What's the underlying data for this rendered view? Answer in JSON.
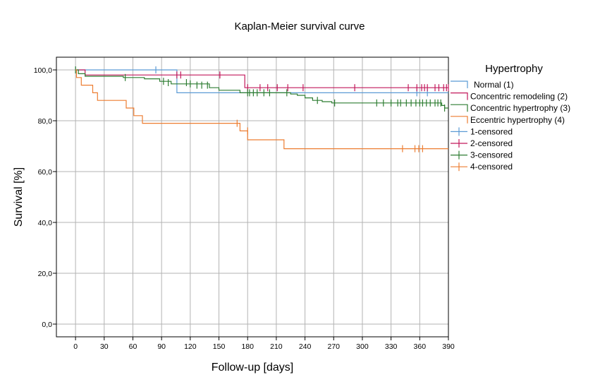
{
  "chart_data": {
    "type": "line",
    "title": "Kaplan-Meier survival curve",
    "xlabel": "Follow-up [days]",
    "ylabel": "Survival [%]",
    "xlim": [
      -20,
      390
    ],
    "ylim": [
      -5,
      105
    ],
    "x_ticks": [
      "0",
      "30",
      "60",
      "90",
      "120",
      "150",
      "180",
      "210",
      "240",
      "270",
      "300",
      "330",
      "360",
      "390"
    ],
    "y_ticks": [
      "0,0",
      "20,0",
      "40,0",
      "60,0",
      "80,0",
      "100,0"
    ],
    "grid": true,
    "legend_placement": "right",
    "legend_title": "Hypertrophy",
    "legend_entries": [
      {
        "label": "Normal (1)",
        "kind": "line",
        "color": "#5b9bd5"
      },
      {
        "label": "Concentric remodeling (2)",
        "kind": "line",
        "color": "#c2185b"
      },
      {
        "label": "Concentric hypertrophy (3)",
        "kind": "line",
        "color": "#2e7d32"
      },
      {
        "label": "Eccentric hypertrophy (4)",
        "kind": "line",
        "color": "#ed7d31"
      },
      {
        "label": "1-censored",
        "kind": "censor",
        "color": "#5b9bd5"
      },
      {
        "label": "2-censored",
        "kind": "censor",
        "color": "#c2185b"
      },
      {
        "label": "3-censored",
        "kind": "censor",
        "color": "#2e7d32"
      },
      {
        "label": "4-censored",
        "kind": "censor",
        "color": "#ed7d31"
      }
    ],
    "series": [
      {
        "name": "Normal (1)",
        "color": "#5b9bd5",
        "steps": [
          [
            0,
            100
          ],
          [
            106,
            91
          ],
          [
            390,
            91
          ]
        ],
        "censored": [
          [
            0,
            100
          ],
          [
            84,
            100
          ],
          [
            357,
            91
          ],
          [
            368,
            91
          ]
        ]
      },
      {
        "name": "Concentric remodeling (2)",
        "color": "#c2185b",
        "steps": [
          [
            0,
            100
          ],
          [
            10,
            98
          ],
          [
            175,
            98
          ],
          [
            177,
            93
          ],
          [
            390,
            93
          ]
        ],
        "censored": [
          [
            106,
            98
          ],
          [
            110,
            98
          ],
          [
            151,
            98
          ],
          [
            180,
            93
          ],
          [
            193,
            93
          ],
          [
            201,
            93
          ],
          [
            211,
            93
          ],
          [
            222,
            93
          ],
          [
            238,
            93
          ],
          [
            292,
            93
          ],
          [
            348,
            93
          ],
          [
            357,
            93
          ],
          [
            362,
            93
          ],
          [
            365,
            93
          ],
          [
            368,
            93
          ],
          [
            376,
            93
          ],
          [
            380,
            93
          ],
          [
            385,
            93
          ],
          [
            388,
            93
          ],
          [
            390,
            93
          ]
        ]
      },
      {
        "name": "Concentric hypertrophy (3)",
        "color": "#2e7d32",
        "steps": [
          [
            0,
            100
          ],
          [
            3,
            98.5
          ],
          [
            10,
            97.5
          ],
          [
            50,
            97
          ],
          [
            72,
            96.5
          ],
          [
            88,
            95.5
          ],
          [
            100,
            94.5
          ],
          [
            140,
            93
          ],
          [
            150,
            92
          ],
          [
            172,
            91
          ],
          [
            225,
            90.5
          ],
          [
            232,
            90
          ],
          [
            240,
            89
          ],
          [
            248,
            88
          ],
          [
            258,
            87.5
          ],
          [
            268,
            87
          ],
          [
            383,
            86
          ],
          [
            386,
            85
          ],
          [
            390,
            85
          ]
        ],
        "censored": [
          [
            0,
            100
          ],
          [
            52,
            97
          ],
          [
            92,
            95.5
          ],
          [
            97,
            95
          ],
          [
            116,
            95
          ],
          [
            120,
            94.5
          ],
          [
            127,
            94
          ],
          [
            132,
            94
          ],
          [
            138,
            94
          ],
          [
            180,
            91
          ],
          [
            182,
            91
          ],
          [
            186,
            91
          ],
          [
            190,
            91
          ],
          [
            197,
            91
          ],
          [
            203,
            91
          ],
          [
            221,
            91
          ],
          [
            253,
            88
          ],
          [
            271,
            87
          ],
          [
            315,
            87
          ],
          [
            322,
            87
          ],
          [
            330,
            87
          ],
          [
            337,
            87
          ],
          [
            340,
            87
          ],
          [
            346,
            87
          ],
          [
            351,
            87
          ],
          [
            356,
            87
          ],
          [
            360,
            87
          ],
          [
            363,
            87
          ],
          [
            367,
            87
          ],
          [
            371,
            87
          ],
          [
            376,
            87
          ],
          [
            379,
            87
          ],
          [
            382,
            87
          ],
          [
            386,
            85
          ]
        ]
      },
      {
        "name": "Eccentric hypertrophy (4)",
        "color": "#ed7d31",
        "steps": [
          [
            0,
            100
          ],
          [
            1,
            97
          ],
          [
            6,
            94
          ],
          [
            18,
            91
          ],
          [
            23,
            88
          ],
          [
            53,
            85
          ],
          [
            61,
            82
          ],
          [
            70,
            79
          ],
          [
            172,
            76
          ],
          [
            180,
            72.5
          ],
          [
            218,
            69
          ],
          [
            390,
            69
          ]
        ],
        "censored": [
          [
            169,
            79
          ],
          [
            180,
            76
          ],
          [
            342,
            69
          ],
          [
            355,
            69
          ],
          [
            359,
            69
          ],
          [
            363,
            69
          ]
        ]
      }
    ]
  }
}
